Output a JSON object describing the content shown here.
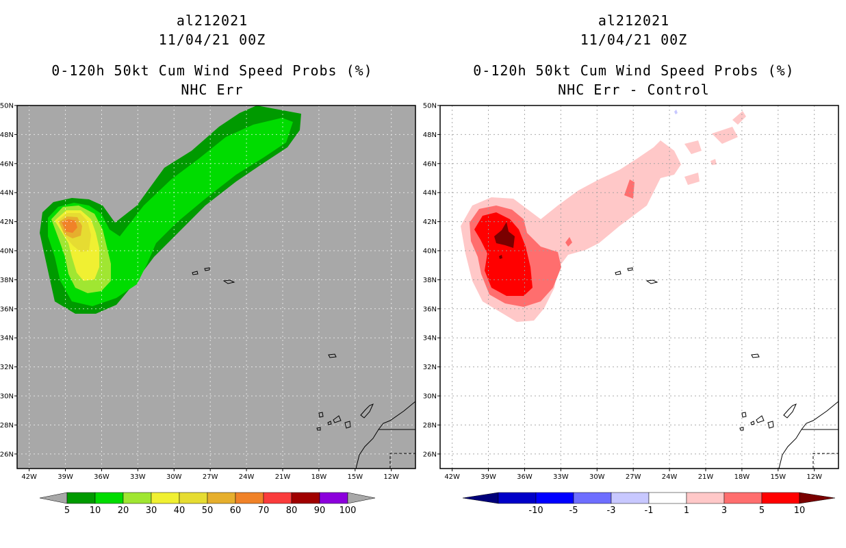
{
  "chart_data": [
    {
      "type": "filled-contour-map",
      "title_lines": [
        "al212021",
        "11/04/21 00Z",
        "0-120h 50kt Cum Wind Speed Probs (%)",
        "NHC Err"
      ],
      "lon_range": [
        -43,
        -10
      ],
      "lat_range": [
        25,
        50
      ],
      "x_ticks": [
        "42W",
        "39W",
        "36W",
        "33W",
        "30W",
        "27W",
        "24W",
        "21W",
        "18W",
        "15W",
        "12W"
      ],
      "y_ticks": [
        "26N",
        "28N",
        "30N",
        "32N",
        "34N",
        "36N",
        "38N",
        "40N",
        "42N",
        "44N",
        "46N",
        "48N",
        "50N"
      ],
      "background": "#a8a8a8",
      "colorbar": {
        "labels": [
          "5",
          "10",
          "20",
          "30",
          "40",
          "50",
          "60",
          "70",
          "80",
          "90",
          "100"
        ],
        "colors": [
          "#009a00",
          "#00dc00",
          "#a0e632",
          "#f0f032",
          "#e6dc32",
          "#e6af2d",
          "#f08228",
          "#fa3c3c",
          "#a00000",
          "#8c00dc"
        ]
      }
    },
    {
      "type": "filled-contour-map",
      "title_lines": [
        "al212021",
        "11/04/21 00Z",
        "0-120h 50kt Cum Wind Speed Probs (%)",
        "NHC Err - Control"
      ],
      "lon_range": [
        -43,
        -10
      ],
      "lat_range": [
        25,
        50
      ],
      "x_ticks": [
        "42W",
        "39W",
        "36W",
        "33W",
        "30W",
        "27W",
        "24W",
        "21W",
        "18W",
        "15W",
        "12W"
      ],
      "y_ticks": [
        "26N",
        "28N",
        "30N",
        "32N",
        "34N",
        "36N",
        "38N",
        "40N",
        "42N",
        "44N",
        "46N",
        "48N",
        "50N"
      ],
      "background": "#ffffff",
      "colorbar": {
        "labels": [
          "-10",
          "-5",
          "-3",
          "-1",
          "1",
          "3",
          "5",
          "10"
        ],
        "colors": [
          "#0000c8",
          "#0000ff",
          "#6e6eff",
          "#c8c8ff",
          "#ffffff",
          "#ffc8c8",
          "#ff6e6e",
          "#ff0000"
        ],
        "end_colors": [
          "#00007a",
          "#7a0000"
        ]
      }
    }
  ]
}
